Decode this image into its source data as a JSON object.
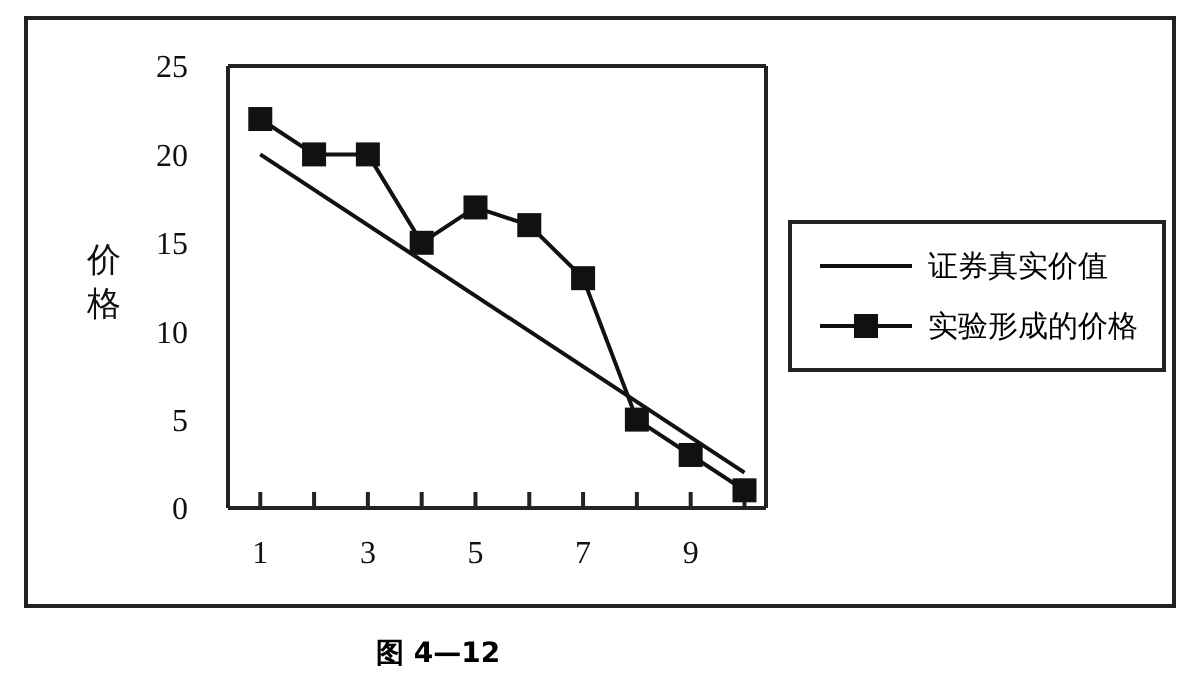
{
  "chart_data": {
    "type": "line",
    "ylabel": "价格",
    "x": [
      1,
      2,
      3,
      4,
      5,
      6,
      7,
      8,
      9,
      10
    ],
    "series": [
      {
        "name": "证券真实价值",
        "color": "#111111",
        "x": [
          1,
          10
        ],
        "values": [
          20,
          2
        ],
        "marker": "none"
      },
      {
        "name": "实验形成的价格",
        "color": "#111111",
        "values": [
          22,
          20,
          20,
          15,
          17,
          16,
          13,
          5,
          3,
          1
        ],
        "marker": "square"
      }
    ],
    "xlim": [
      0.4,
      10.4
    ],
    "xticks": [
      1,
      {
        "value": 2,
        "label": null
      },
      3,
      {
        "value": 4,
        "label": null
      },
      5,
      {
        "value": 6,
        "label": null
      },
      7,
      {
        "value": 8,
        "label": null
      },
      9,
      {
        "value": 10,
        "label": null
      }
    ],
    "ylim": [
      0,
      25
    ],
    "yticks": [
      0,
      5,
      10,
      15,
      20,
      25
    ],
    "legend": "right",
    "line_style": "solid",
    "annotations": [
      "图 4—12"
    ]
  }
}
